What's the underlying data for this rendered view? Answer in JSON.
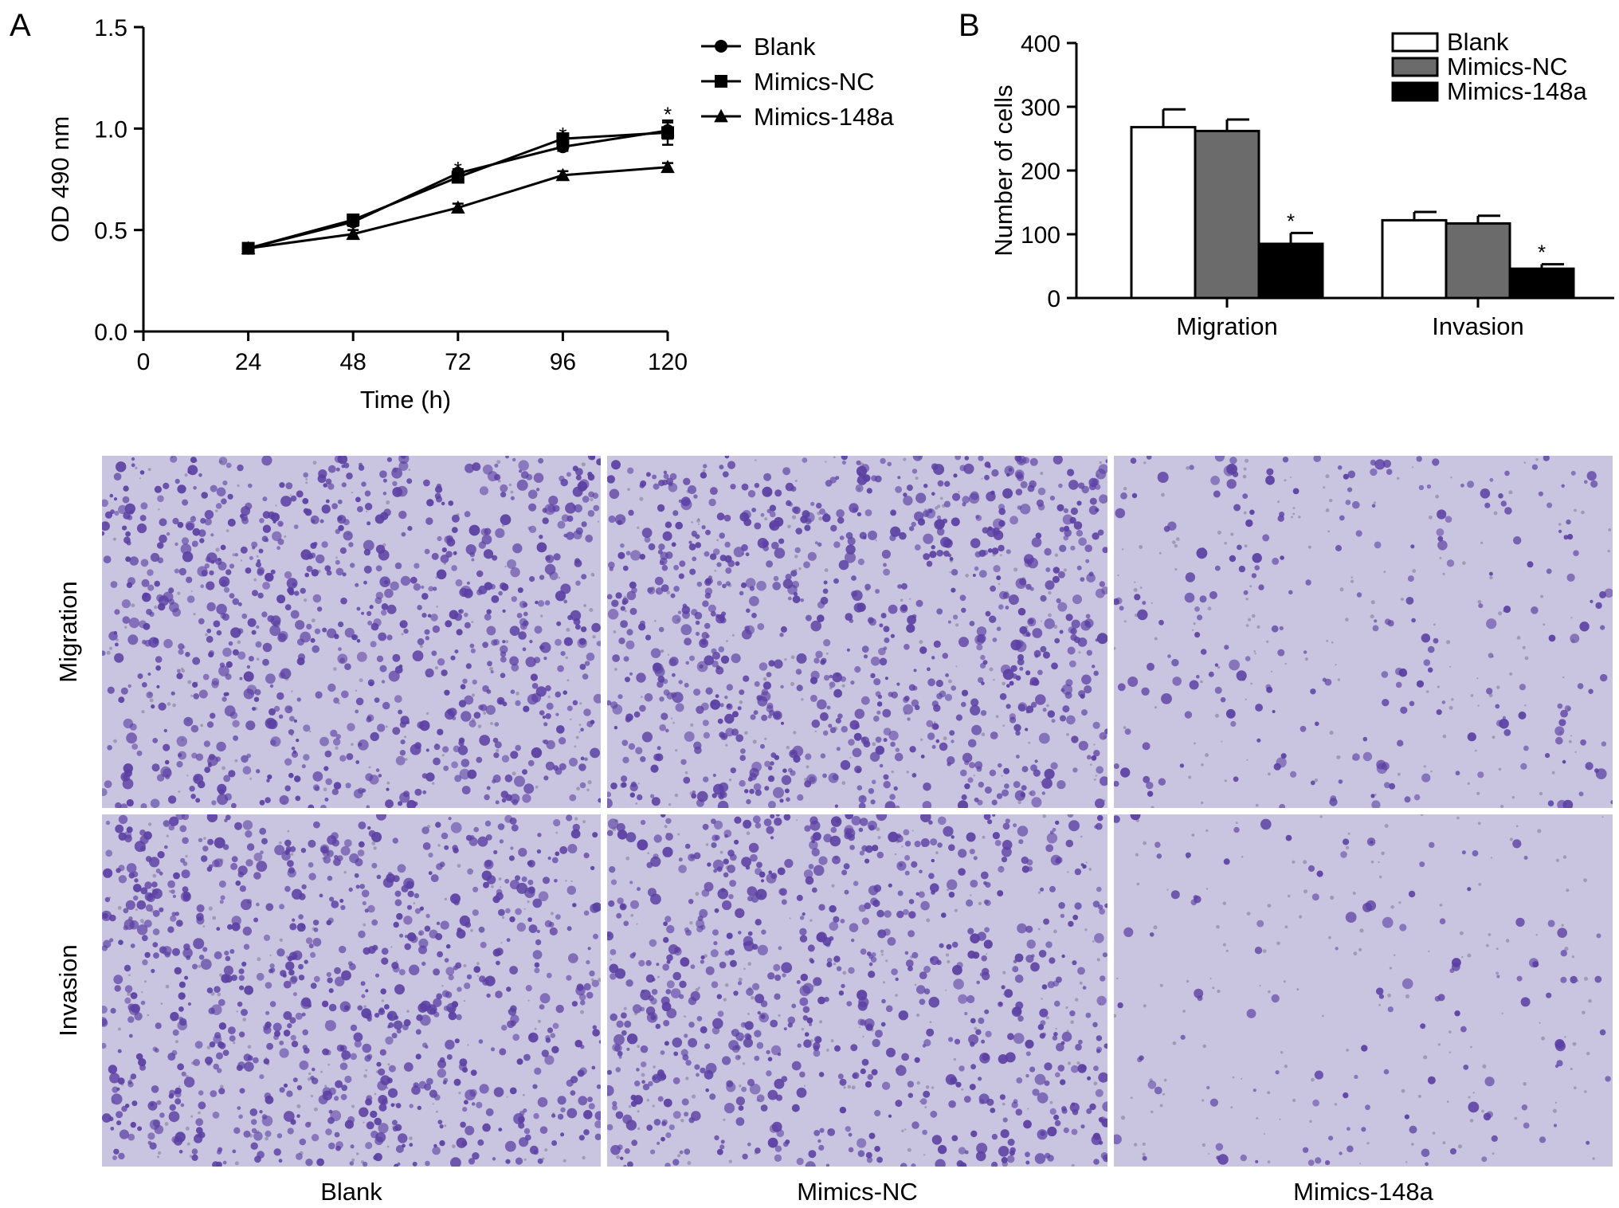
{
  "panels": {
    "a_letter": "A",
    "b_letter": "B"
  },
  "chart_data": [
    {
      "type": "line",
      "panel": "A",
      "xlabel": "Time (h)",
      "ylabel": "OD 490 nm",
      "xlim": [
        0,
        120
      ],
      "ylim": [
        0.0,
        1.5
      ],
      "xticks": [
        "0",
        "24",
        "48",
        "72",
        "96",
        "120"
      ],
      "xtick_values": [
        0,
        24,
        48,
        72,
        96,
        120
      ],
      "yticks": [
        "0.0",
        "0.5",
        "1.0",
        "1.5"
      ],
      "ytick_values": [
        0.0,
        0.5,
        1.0,
        1.5
      ],
      "x": [
        24,
        48,
        72,
        96,
        120
      ],
      "series": [
        {
          "name": "Blank",
          "marker": "circle",
          "values": [
            0.41,
            0.54,
            0.78,
            0.91,
            0.99
          ],
          "errors": [
            0.01,
            0.02,
            0.02,
            0.02,
            0.04
          ]
        },
        {
          "name": "Mimics-NC",
          "marker": "square",
          "values": [
            0.41,
            0.55,
            0.76,
            0.95,
            0.98
          ],
          "errors": [
            0.01,
            0.02,
            0.02,
            0.02,
            0.06
          ]
        },
        {
          "name": "Mimics-148a",
          "marker": "triangle",
          "values": [
            0.41,
            0.48,
            0.61,
            0.77,
            0.81
          ],
          "errors": [
            0.01,
            0.02,
            0.02,
            0.02,
            0.02
          ]
        }
      ],
      "annotations": [
        {
          "x": 72,
          "y": 0.82,
          "text": "*"
        },
        {
          "x": 96,
          "y": 0.99,
          "text": "*"
        },
        {
          "x": 120,
          "y": 1.09,
          "text": "*"
        }
      ],
      "legend": "top-right",
      "grid": false
    },
    {
      "type": "bar",
      "panel": "B",
      "categories": [
        "Migration",
        "Invasion"
      ],
      "ylabel": "Number of cells",
      "xlabel": "",
      "ylim": [
        0,
        400
      ],
      "yticks": [
        "0",
        "100",
        "200",
        "300",
        "400"
      ],
      "ytick_values": [
        0,
        100,
        200,
        300,
        400
      ],
      "series": [
        {
          "name": "Blank",
          "color": "#ffffff",
          "values": [
            268,
            122
          ],
          "errors": [
            28,
            13
          ]
        },
        {
          "name": "Mimics-NC",
          "color": "#6b6b6b",
          "values": [
            262,
            117
          ],
          "errors": [
            18,
            12
          ]
        },
        {
          "name": "Mimics-148a",
          "color": "#000000",
          "values": [
            85,
            46
          ],
          "errors": [
            17,
            7
          ]
        }
      ],
      "annotations": [
        {
          "category": "Migration",
          "series": "Mimics-148a",
          "text": "*"
        },
        {
          "category": "Invasion",
          "series": "Mimics-148a",
          "text": "*"
        }
      ],
      "legend": "top-right",
      "grid": false
    }
  ],
  "micrographs": {
    "row_labels": [
      "Migration",
      "Invasion"
    ],
    "column_labels": [
      "Blank",
      "Mimics-NC",
      "Mimics-148a"
    ],
    "background_color": "#c9c4df",
    "stain_color": "#5b3fa3",
    "relative_density": [
      [
        1.0,
        1.05,
        0.28
      ],
      [
        1.0,
        0.9,
        0.14
      ]
    ]
  }
}
